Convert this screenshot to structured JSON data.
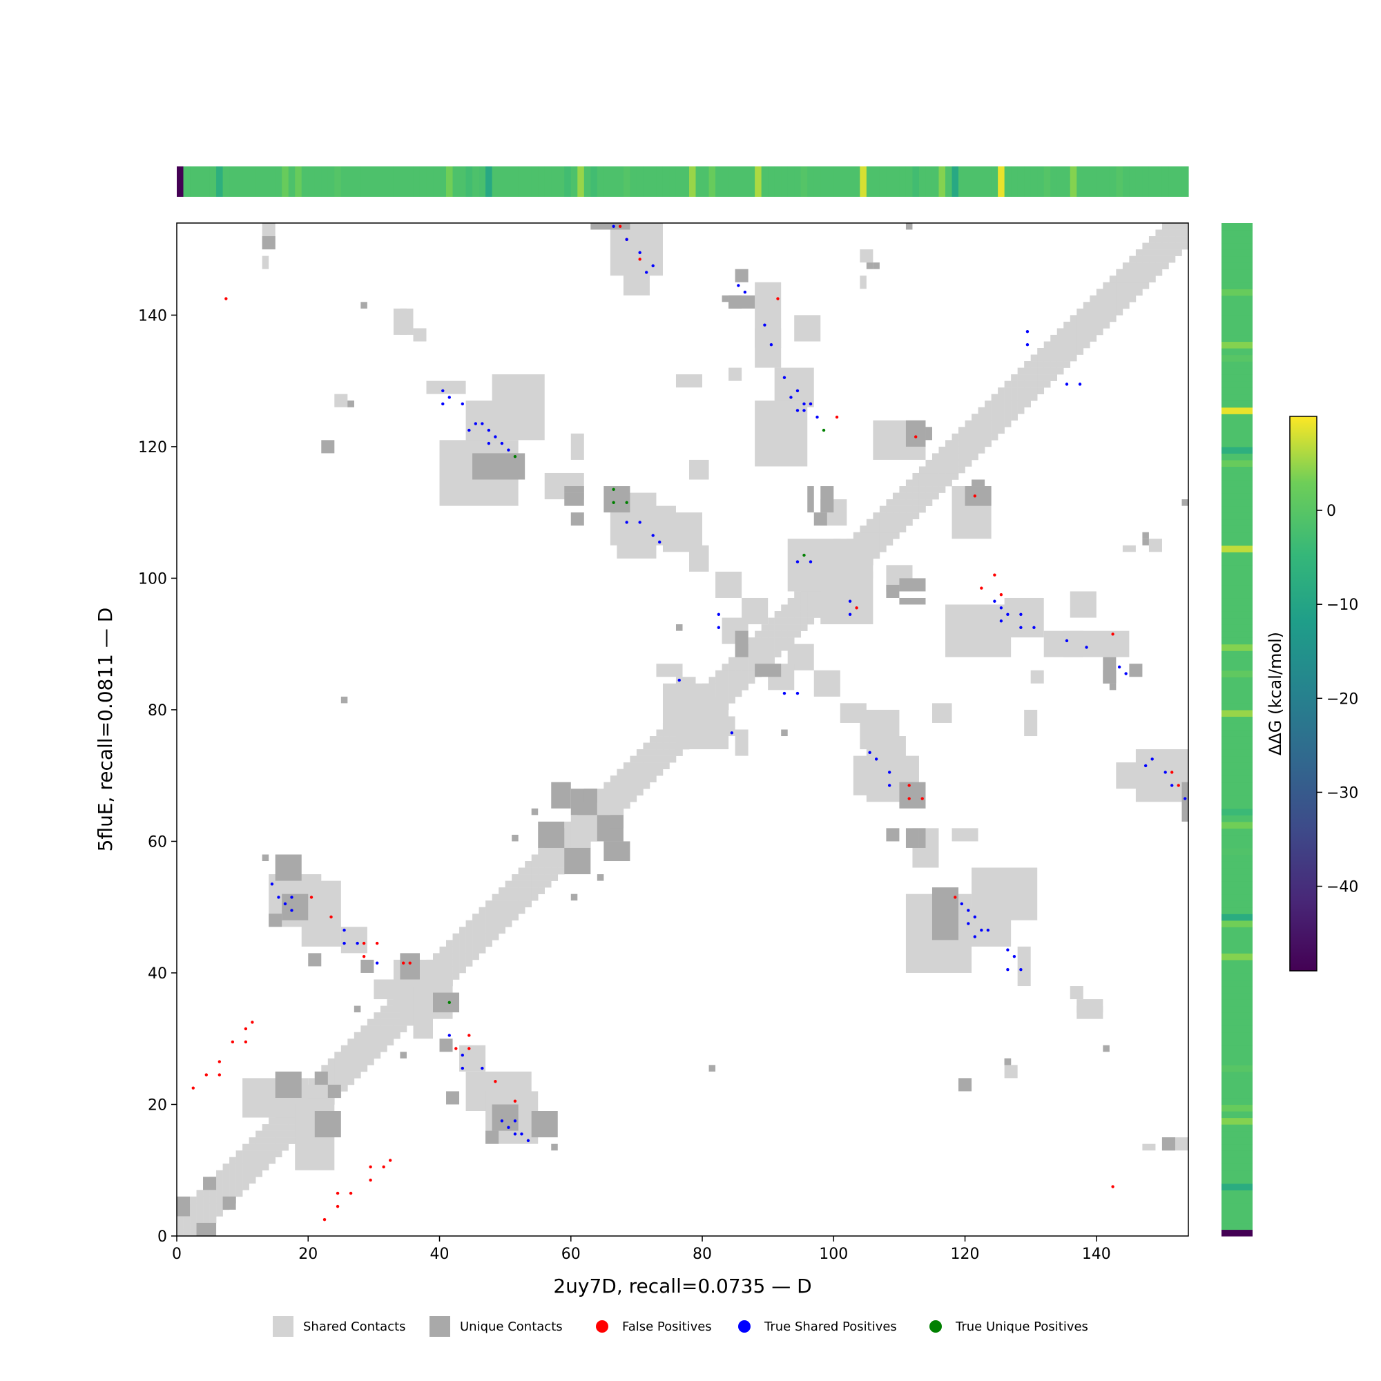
{
  "chart_data": {
    "type": "heatmap",
    "xlabel": "2uy7D, recall=0.0735 — D",
    "ylabel": "5fluE, recall=0.0811 — D",
    "xlim": [
      0,
      154
    ],
    "ylim": [
      0,
      154
    ],
    "x_ticks": [
      0,
      20,
      40,
      60,
      80,
      100,
      120,
      140
    ],
    "y_ticks": [
      0,
      20,
      40,
      60,
      80,
      100,
      120,
      140
    ],
    "colorbar": {
      "label": "ΔΔG (kcal/mol)",
      "colormap": "viridis",
      "range": [
        -49,
        10
      ],
      "ticks": [
        0,
        -10,
        -20,
        -30,
        -40
      ]
    },
    "ddg_top": {
      "base": -1.5,
      "overrides": [
        [
          0,
          -49
        ],
        [
          6,
          -7
        ],
        [
          16,
          2
        ],
        [
          18,
          2
        ],
        [
          24,
          -0.5
        ],
        [
          41,
          3
        ],
        [
          44,
          -3
        ],
        [
          46,
          -2
        ],
        [
          47,
          -9
        ],
        [
          59,
          -3
        ],
        [
          61,
          5
        ],
        [
          63,
          -3
        ],
        [
          68,
          -0.5
        ],
        [
          78,
          5
        ],
        [
          81,
          2
        ],
        [
          88,
          6
        ],
        [
          95,
          -0.5
        ],
        [
          104,
          8
        ],
        [
          112,
          -3
        ],
        [
          116,
          4
        ],
        [
          118,
          -9
        ],
        [
          125,
          9
        ],
        [
          132,
          -0.5
        ],
        [
          136,
          4
        ],
        [
          143,
          -0.5
        ]
      ]
    },
    "ddg_right": {
      "base": -1.5,
      "overrides": [
        [
          0,
          -49
        ],
        [
          7,
          -8
        ],
        [
          17,
          4
        ],
        [
          19,
          2
        ],
        [
          25,
          0
        ],
        [
          42,
          4
        ],
        [
          47,
          3
        ],
        [
          48,
          -8
        ],
        [
          58,
          -1
        ],
        [
          62,
          3
        ],
        [
          64,
          -4
        ],
        [
          79,
          5
        ],
        [
          85,
          1
        ],
        [
          89,
          4
        ],
        [
          104,
          7
        ],
        [
          117,
          2
        ],
        [
          119,
          -7
        ],
        [
          125,
          9
        ],
        [
          133,
          0
        ],
        [
          135,
          4
        ],
        [
          143,
          2
        ]
      ]
    },
    "legend": [
      {
        "label": "Shared Contacts",
        "color": "#d3d3d3",
        "marker": "square"
      },
      {
        "label": "Unique Contacts",
        "color": "#a9a9a9",
        "marker": "square"
      },
      {
        "label": "False Positives",
        "color": "#ff0000",
        "marker": "circle"
      },
      {
        "label": "True Shared Positives",
        "color": "#0000ff",
        "marker": "circle"
      },
      {
        "label": "True Unique Positives",
        "color": "#008000",
        "marker": "circle"
      }
    ],
    "shared_contact_blocks": [
      [
        13,
        150,
        2,
        4
      ],
      [
        68,
        143,
        4,
        10
      ],
      [
        88,
        132,
        4,
        6
      ],
      [
        91,
        126,
        6,
        6
      ],
      [
        38,
        128,
        6,
        2
      ],
      [
        44,
        117,
        6,
        10
      ],
      [
        56,
        112,
        6,
        4
      ],
      [
        66,
        105,
        10,
        6
      ],
      [
        106,
        118,
        8,
        6
      ],
      [
        19,
        44,
        6,
        10
      ],
      [
        47,
        14,
        8,
        8
      ],
      [
        111,
        40,
        10,
        12
      ],
      [
        121,
        48,
        10,
        8
      ],
      [
        117,
        88,
        10,
        8
      ],
      [
        135,
        88,
        10,
        4
      ],
      [
        146,
        66,
        8,
        8
      ],
      [
        103,
        67,
        10,
        6
      ],
      [
        93,
        86,
        4,
        4
      ],
      [
        83,
        90,
        4,
        4
      ],
      [
        97,
        82,
        4,
        4
      ],
      [
        101,
        78,
        4,
        3
      ],
      [
        115,
        78,
        3,
        3
      ],
      [
        73,
        85,
        4,
        2
      ],
      [
        104,
        74,
        6,
        6
      ],
      [
        108,
        98,
        4,
        4
      ],
      [
        13,
        150,
        2,
        2
      ],
      [
        34,
        33,
        8,
        6
      ],
      [
        30,
        36,
        8,
        3
      ],
      [
        10,
        18,
        10,
        6
      ],
      [
        43,
        25,
        4,
        4
      ],
      [
        74,
        76,
        8,
        8
      ],
      [
        81,
        76,
        4,
        3
      ],
      [
        93,
        98,
        8,
        8
      ],
      [
        102,
        100,
        4,
        4
      ],
      [
        94,
        136,
        4,
        4
      ],
      [
        76,
        129,
        4,
        2
      ],
      [
        84,
        130,
        2,
        2
      ],
      [
        104,
        148,
        2,
        2
      ],
      [
        144,
        104,
        2,
        1
      ],
      [
        136,
        36,
        2,
        2
      ],
      [
        137,
        33,
        4,
        2
      ],
      [
        118,
        60,
        4,
        2
      ],
      [
        147,
        13,
        2,
        1
      ],
      [
        24,
        126,
        2,
        2
      ],
      [
        34,
        137,
        2,
        4
      ]
    ],
    "unique_contact_blocks": [
      [
        13,
        150,
        2,
        2
      ],
      [
        63,
        153,
        6,
        1
      ],
      [
        84,
        141,
        4,
        2
      ],
      [
        85,
        145,
        2,
        2
      ],
      [
        84,
        141,
        2,
        2
      ],
      [
        111,
        153,
        1,
        1
      ],
      [
        106,
        147,
        1,
        1
      ],
      [
        26,
        126,
        1,
        1
      ],
      [
        45,
        115,
        8,
        4
      ],
      [
        65,
        110,
        4,
        4
      ],
      [
        120,
        111,
        4,
        3
      ],
      [
        121,
        114,
        2,
        1
      ],
      [
        110,
        98,
        4,
        2
      ],
      [
        108,
        97,
        2,
        2
      ],
      [
        110,
        96,
        4,
        1
      ],
      [
        88,
        85,
        4,
        2
      ],
      [
        108,
        60,
        2,
        2
      ],
      [
        111,
        59,
        2,
        3
      ],
      [
        113,
        59,
        1,
        3
      ],
      [
        81,
        25,
        1,
        1
      ],
      [
        119,
        22,
        2,
        2
      ],
      [
        141,
        28,
        1,
        1
      ],
      [
        126,
        26,
        1,
        1
      ],
      [
        147,
        105,
        1,
        1
      ],
      [
        142,
        83,
        1,
        1
      ],
      [
        92,
        76,
        1,
        1
      ],
      [
        54,
        15,
        4,
        4
      ],
      [
        48,
        16,
        4,
        4
      ],
      [
        20,
        41,
        2,
        2
      ],
      [
        15,
        21,
        4,
        4
      ],
      [
        23,
        21,
        2,
        2
      ],
      [
        39,
        34,
        4,
        3
      ],
      [
        55,
        59,
        4,
        4
      ],
      [
        60,
        64,
        4,
        4
      ],
      [
        65,
        57,
        4,
        3
      ],
      [
        66,
        62,
        2,
        2
      ],
      [
        3,
        0,
        3,
        2
      ],
      [
        7,
        4,
        2,
        2
      ],
      [
        28,
        40,
        2,
        2
      ],
      [
        54,
        64,
        1,
        1
      ],
      [
        13,
        57,
        1,
        1
      ],
      [
        14,
        47,
        2,
        2
      ],
      [
        27,
        34,
        1,
        1
      ],
      [
        60,
        51,
        1,
        1
      ]
    ],
    "false_positives": [
      [
        67,
        153
      ],
      [
        68,
        151
      ],
      [
        70,
        148
      ],
      [
        91,
        142
      ],
      [
        7,
        142
      ],
      [
        96,
        126
      ],
      [
        100,
        124
      ],
      [
        112,
        121
      ],
      [
        121,
        112
      ],
      [
        124,
        100
      ],
      [
        122,
        98
      ],
      [
        125,
        97
      ],
      [
        103,
        95
      ],
      [
        142,
        91
      ],
      [
        151,
        70
      ],
      [
        152,
        68
      ],
      [
        111,
        68
      ],
      [
        111,
        66
      ],
      [
        113,
        66
      ],
      [
        20,
        51
      ],
      [
        23,
        48
      ],
      [
        28,
        44
      ],
      [
        30,
        44
      ],
      [
        34,
        41
      ],
      [
        35,
        41
      ],
      [
        11,
        32
      ],
      [
        10,
        31
      ],
      [
        8,
        29
      ],
      [
        10,
        29
      ],
      [
        6,
        26
      ],
      [
        4,
        24
      ],
      [
        6,
        24
      ],
      [
        2,
        22
      ],
      [
        44,
        30
      ],
      [
        42,
        28
      ],
      [
        44,
        28
      ],
      [
        28,
        42
      ],
      [
        48,
        23
      ],
      [
        51,
        20
      ],
      [
        32,
        11
      ],
      [
        29,
        10
      ],
      [
        31,
        10
      ],
      [
        29,
        8
      ],
      [
        24,
        6
      ],
      [
        26,
        6
      ],
      [
        24,
        4
      ],
      [
        22,
        2
      ],
      [
        142,
        7
      ],
      [
        118,
        51
      ]
    ],
    "true_shared_positives": [
      [
        66,
        153
      ],
      [
        68,
        151
      ],
      [
        70,
        149
      ],
      [
        72,
        147
      ],
      [
        71,
        146
      ],
      [
        85,
        144
      ],
      [
        86,
        143
      ],
      [
        89,
        138
      ],
      [
        90,
        135
      ],
      [
        92,
        130
      ],
      [
        94,
        128
      ],
      [
        93,
        127
      ],
      [
        95,
        126
      ],
      [
        96,
        126
      ],
      [
        94,
        125
      ],
      [
        95,
        125
      ],
      [
        97,
        124
      ],
      [
        40,
        128
      ],
      [
        41,
        127
      ],
      [
        40,
        126
      ],
      [
        43,
        126
      ],
      [
        45,
        123
      ],
      [
        46,
        123
      ],
      [
        44,
        122
      ],
      [
        47,
        122
      ],
      [
        48,
        121
      ],
      [
        49,
        120
      ],
      [
        47,
        120
      ],
      [
        50,
        119
      ],
      [
        129,
        137
      ],
      [
        129,
        135
      ],
      [
        135,
        129
      ],
      [
        137,
        129
      ],
      [
        68,
        108
      ],
      [
        70,
        108
      ],
      [
        72,
        106
      ],
      [
        73,
        105
      ],
      [
        94,
        102
      ],
      [
        96,
        102
      ],
      [
        102,
        96
      ],
      [
        102,
        94
      ],
      [
        82,
        94
      ],
      [
        82,
        92
      ],
      [
        124,
        96
      ],
      [
        125,
        95
      ],
      [
        126,
        94
      ],
      [
        128,
        94
      ],
      [
        125,
        93
      ],
      [
        128,
        92
      ],
      [
        130,
        92
      ],
      [
        135,
        90
      ],
      [
        138,
        89
      ],
      [
        143,
        86
      ],
      [
        144,
        85
      ],
      [
        76,
        84
      ],
      [
        92,
        82
      ],
      [
        94,
        82
      ],
      [
        84,
        76
      ],
      [
        105,
        73
      ],
      [
        106,
        72
      ],
      [
        108,
        70
      ],
      [
        108,
        68
      ],
      [
        148,
        72
      ],
      [
        147,
        71
      ],
      [
        150,
        70
      ],
      [
        151,
        68
      ],
      [
        153,
        66
      ],
      [
        14,
        53
      ],
      [
        15,
        51
      ],
      [
        17,
        51
      ],
      [
        16,
        50
      ],
      [
        17,
        49
      ],
      [
        25,
        46
      ],
      [
        25,
        44
      ],
      [
        27,
        44
      ],
      [
        30,
        41
      ],
      [
        119,
        50
      ],
      [
        120,
        49
      ],
      [
        121,
        48
      ],
      [
        120,
        47
      ],
      [
        122,
        46
      ],
      [
        123,
        46
      ],
      [
        121,
        45
      ],
      [
        126,
        43
      ],
      [
        127,
        42
      ],
      [
        126,
        40
      ],
      [
        128,
        40
      ],
      [
        41,
        30
      ],
      [
        43,
        27
      ],
      [
        43,
        25
      ],
      [
        46,
        25
      ],
      [
        49,
        17
      ],
      [
        51,
        17
      ],
      [
        50,
        16
      ],
      [
        52,
        15
      ],
      [
        51,
        15
      ],
      [
        53,
        14
      ]
    ],
    "true_unique_positives": [
      [
        51,
        118
      ],
      [
        66,
        113
      ],
      [
        66,
        111
      ],
      [
        68,
        111
      ],
      [
        95,
        103
      ],
      [
        98,
        122
      ],
      [
        41,
        35
      ]
    ]
  }
}
